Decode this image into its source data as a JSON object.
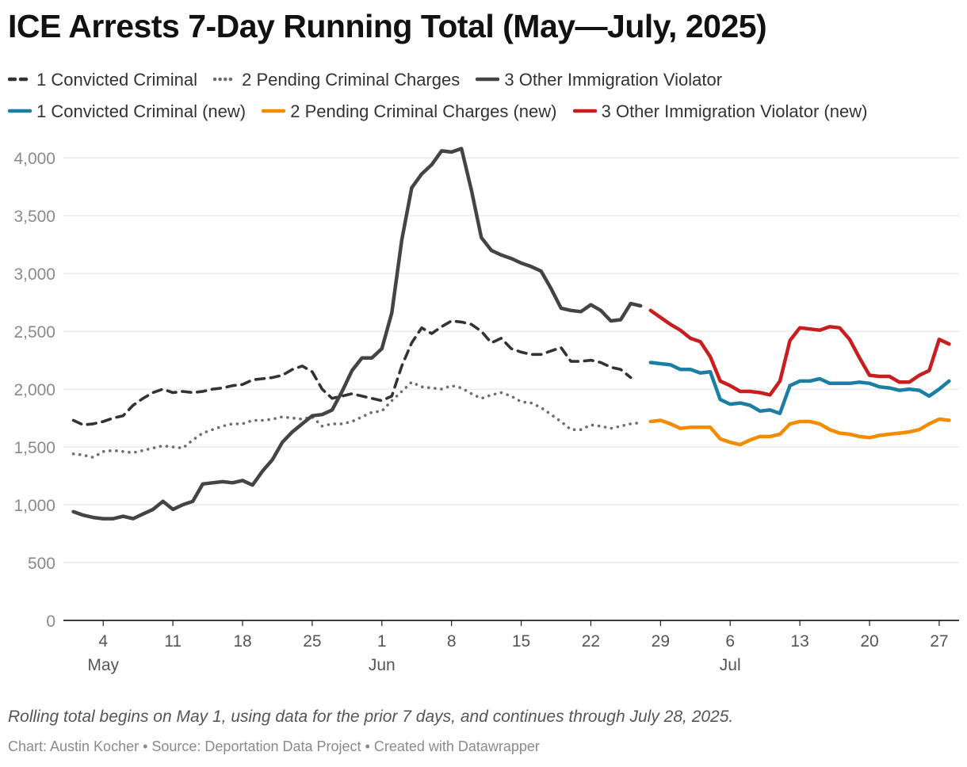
{
  "chart_data": {
    "type": "line",
    "title": "ICE Arrests 7-Day Running Total (May—July, 2025)",
    "notes": "Rolling total begins on May 1, using data for the prior 7 days, and continues through July 28, 2025.",
    "footer": "Chart: Austin Kocher • Source: Deportation Data Project • Created with Datawrapper",
    "xlabel": "",
    "ylabel": "",
    "x_range": [
      "2025-04-30",
      "2025-07-29"
    ],
    "ylim": [
      0,
      4200
    ],
    "grid": "horizontal",
    "legend_position": "top",
    "y_ticks": [
      {
        "value": 0,
        "label": "0"
      },
      {
        "value": 500,
        "label": "500"
      },
      {
        "value": 1000,
        "label": "1,000"
      },
      {
        "value": 1500,
        "label": "1,500"
      },
      {
        "value": 2000,
        "label": "2,000"
      },
      {
        "value": 2500,
        "label": "2,500"
      },
      {
        "value": 3000,
        "label": "3,000"
      },
      {
        "value": 3500,
        "label": "3,500"
      },
      {
        "value": 4000,
        "label": "4,000"
      }
    ],
    "x_ticks": [
      {
        "date": "2025-05-04",
        "label": "4",
        "month": "May"
      },
      {
        "date": "2025-05-11",
        "label": "11",
        "month": ""
      },
      {
        "date": "2025-05-18",
        "label": "18",
        "month": ""
      },
      {
        "date": "2025-05-25",
        "label": "25",
        "month": ""
      },
      {
        "date": "2025-06-01",
        "label": "1",
        "month": "Jun"
      },
      {
        "date": "2025-06-08",
        "label": "8",
        "month": ""
      },
      {
        "date": "2025-06-15",
        "label": "15",
        "month": ""
      },
      {
        "date": "2025-06-22",
        "label": "22",
        "month": ""
      },
      {
        "date": "2025-06-29",
        "label": "29",
        "month": ""
      },
      {
        "date": "2025-07-06",
        "label": "6",
        "month": "Jul"
      },
      {
        "date": "2025-07-13",
        "label": "13",
        "month": ""
      },
      {
        "date": "2025-07-20",
        "label": "20",
        "month": ""
      },
      {
        "date": "2025-07-27",
        "label": "27",
        "month": ""
      }
    ],
    "series": [
      {
        "name": "1 Convicted Criminal",
        "color": "#333333",
        "style": "dashed",
        "x": [
          "2025-05-01",
          "2025-05-02",
          "2025-05-03",
          "2025-05-04",
          "2025-05-05",
          "2025-05-06",
          "2025-05-07",
          "2025-05-08",
          "2025-05-09",
          "2025-05-10",
          "2025-05-11",
          "2025-05-12",
          "2025-05-13",
          "2025-05-14",
          "2025-05-15",
          "2025-05-16",
          "2025-05-17",
          "2025-05-18",
          "2025-05-19",
          "2025-05-20",
          "2025-05-21",
          "2025-05-22",
          "2025-05-23",
          "2025-05-24",
          "2025-05-25",
          "2025-05-26",
          "2025-05-27",
          "2025-05-28",
          "2025-05-29",
          "2025-05-30",
          "2025-05-31",
          "2025-06-01",
          "2025-06-02",
          "2025-06-03",
          "2025-06-04",
          "2025-06-05",
          "2025-06-06",
          "2025-06-07",
          "2025-06-08",
          "2025-06-09",
          "2025-06-10",
          "2025-06-11",
          "2025-06-12",
          "2025-06-13",
          "2025-06-14",
          "2025-06-15",
          "2025-06-16",
          "2025-06-17",
          "2025-06-18",
          "2025-06-19",
          "2025-06-20",
          "2025-06-21",
          "2025-06-22",
          "2025-06-23",
          "2025-06-24",
          "2025-06-25",
          "2025-06-26"
        ],
        "values": [
          1730,
          1690,
          1700,
          1720,
          1750,
          1770,
          1860,
          1920,
          1970,
          2000,
          1970,
          1980,
          1970,
          1980,
          2000,
          2010,
          2030,
          2040,
          2080,
          2090,
          2100,
          2120,
          2170,
          2200,
          2150,
          2000,
          1920,
          1940,
          1960,
          1940,
          1920,
          1900,
          1940,
          2200,
          2400,
          2530,
          2480,
          2540,
          2590,
          2580,
          2560,
          2500,
          2400,
          2440,
          2350,
          2320,
          2300,
          2300,
          2330,
          2360,
          2240,
          2240,
          2250,
          2230,
          2190,
          2170,
          2100
        ]
      },
      {
        "name": "2 Pending Criminal Charges",
        "color": "#6e6e6e",
        "style": "dotted",
        "x": [
          "2025-05-01",
          "2025-05-02",
          "2025-05-03",
          "2025-05-04",
          "2025-05-05",
          "2025-05-06",
          "2025-05-07",
          "2025-05-08",
          "2025-05-09",
          "2025-05-10",
          "2025-05-11",
          "2025-05-12",
          "2025-05-13",
          "2025-05-14",
          "2025-05-15",
          "2025-05-16",
          "2025-05-17",
          "2025-05-18",
          "2025-05-19",
          "2025-05-20",
          "2025-05-21",
          "2025-05-22",
          "2025-05-23",
          "2025-05-24",
          "2025-05-25",
          "2025-05-26",
          "2025-05-27",
          "2025-05-28",
          "2025-05-29",
          "2025-05-30",
          "2025-05-31",
          "2025-06-01",
          "2025-06-02",
          "2025-06-03",
          "2025-06-04",
          "2025-06-05",
          "2025-06-06",
          "2025-06-07",
          "2025-06-08",
          "2025-06-09",
          "2025-06-10",
          "2025-06-11",
          "2025-06-12",
          "2025-06-13",
          "2025-06-14",
          "2025-06-15",
          "2025-06-16",
          "2025-06-17",
          "2025-06-18",
          "2025-06-19",
          "2025-06-20",
          "2025-06-21",
          "2025-06-22",
          "2025-06-23",
          "2025-06-24",
          "2025-06-25",
          "2025-06-26",
          "2025-06-27"
        ],
        "values": [
          1440,
          1430,
          1410,
          1460,
          1470,
          1460,
          1450,
          1470,
          1490,
          1510,
          1500,
          1490,
          1560,
          1620,
          1650,
          1680,
          1700,
          1700,
          1730,
          1730,
          1740,
          1760,
          1750,
          1740,
          1760,
          1680,
          1700,
          1700,
          1720,
          1760,
          1800,
          1810,
          1900,
          1980,
          2060,
          2020,
          2010,
          2000,
          2030,
          2010,
          1960,
          1920,
          1950,
          1970,
          1940,
          1890,
          1880,
          1840,
          1780,
          1720,
          1650,
          1650,
          1690,
          1680,
          1660,
          1680,
          1700,
          1710
        ]
      },
      {
        "name": "3 Other Immigration Violator",
        "color": "#444444",
        "style": "solid",
        "x": [
          "2025-05-01",
          "2025-05-02",
          "2025-05-03",
          "2025-05-04",
          "2025-05-05",
          "2025-05-06",
          "2025-05-07",
          "2025-05-08",
          "2025-05-09",
          "2025-05-10",
          "2025-05-11",
          "2025-05-12",
          "2025-05-13",
          "2025-05-14",
          "2025-05-15",
          "2025-05-16",
          "2025-05-17",
          "2025-05-18",
          "2025-05-19",
          "2025-05-20",
          "2025-05-21",
          "2025-05-22",
          "2025-05-23",
          "2025-05-24",
          "2025-05-25",
          "2025-05-26",
          "2025-05-27",
          "2025-05-28",
          "2025-05-29",
          "2025-05-30",
          "2025-05-31",
          "2025-06-01",
          "2025-06-02",
          "2025-06-03",
          "2025-06-04",
          "2025-06-05",
          "2025-06-06",
          "2025-06-07",
          "2025-06-08",
          "2025-06-09",
          "2025-06-10",
          "2025-06-11",
          "2025-06-12",
          "2025-06-13",
          "2025-06-14",
          "2025-06-15",
          "2025-06-16",
          "2025-06-17",
          "2025-06-18",
          "2025-06-19",
          "2025-06-20",
          "2025-06-21",
          "2025-06-22",
          "2025-06-23",
          "2025-06-24",
          "2025-06-25",
          "2025-06-26",
          "2025-06-27"
        ],
        "values": [
          940,
          910,
          890,
          880,
          880,
          900,
          880,
          920,
          960,
          1030,
          960,
          1000,
          1030,
          1180,
          1190,
          1200,
          1190,
          1210,
          1170,
          1290,
          1390,
          1540,
          1630,
          1700,
          1770,
          1780,
          1820,
          1980,
          2160,
          2270,
          2270,
          2350,
          2660,
          3290,
          3740,
          3860,
          3940,
          4060,
          4050,
          4080,
          3720,
          3310,
          3200,
          3160,
          3130,
          3090,
          3060,
          3020,
          2870,
          2700,
          2680,
          2670,
          2730,
          2680,
          2590,
          2600,
          2740,
          2720
        ]
      },
      {
        "name": "1 Convicted Criminal (new)",
        "color": "#1b7ea3",
        "style": "solid",
        "x": [
          "2025-06-28",
          "2025-06-29",
          "2025-06-30",
          "2025-07-01",
          "2025-07-02",
          "2025-07-03",
          "2025-07-04",
          "2025-07-05",
          "2025-07-06",
          "2025-07-07",
          "2025-07-08",
          "2025-07-09",
          "2025-07-10",
          "2025-07-11",
          "2025-07-12",
          "2025-07-13",
          "2025-07-14",
          "2025-07-15",
          "2025-07-16",
          "2025-07-17",
          "2025-07-18",
          "2025-07-19",
          "2025-07-20",
          "2025-07-21",
          "2025-07-22",
          "2025-07-23",
          "2025-07-24",
          "2025-07-25",
          "2025-07-26",
          "2025-07-27",
          "2025-07-28"
        ],
        "values": [
          2230,
          2220,
          2210,
          2170,
          2170,
          2140,
          2150,
          1910,
          1870,
          1880,
          1860,
          1810,
          1820,
          1790,
          2030,
          2070,
          2070,
          2090,
          2050,
          2050,
          2050,
          2060,
          2050,
          2020,
          2010,
          1990,
          2000,
          1990,
          1940,
          2000,
          2070
        ]
      },
      {
        "name": "2 Pending Criminal Charges (new)",
        "color": "#f28c00",
        "style": "solid",
        "x": [
          "2025-06-28",
          "2025-06-29",
          "2025-06-30",
          "2025-07-01",
          "2025-07-02",
          "2025-07-03",
          "2025-07-04",
          "2025-07-05",
          "2025-07-06",
          "2025-07-07",
          "2025-07-08",
          "2025-07-09",
          "2025-07-10",
          "2025-07-11",
          "2025-07-12",
          "2025-07-13",
          "2025-07-14",
          "2025-07-15",
          "2025-07-16",
          "2025-07-17",
          "2025-07-18",
          "2025-07-19",
          "2025-07-20",
          "2025-07-21",
          "2025-07-22",
          "2025-07-23",
          "2025-07-24",
          "2025-07-25",
          "2025-07-26",
          "2025-07-27",
          "2025-07-28"
        ],
        "values": [
          1720,
          1730,
          1700,
          1660,
          1670,
          1670,
          1670,
          1570,
          1540,
          1520,
          1560,
          1590,
          1590,
          1610,
          1700,
          1720,
          1720,
          1700,
          1650,
          1620,
          1610,
          1590,
          1580,
          1600,
          1610,
          1620,
          1630,
          1650,
          1700,
          1740,
          1730
        ]
      },
      {
        "name": "3 Other Immigration Violator (new)",
        "color": "#c81e1e",
        "style": "solid",
        "x": [
          "2025-06-28",
          "2025-06-29",
          "2025-06-30",
          "2025-07-01",
          "2025-07-02",
          "2025-07-03",
          "2025-07-04",
          "2025-07-05",
          "2025-07-06",
          "2025-07-07",
          "2025-07-08",
          "2025-07-09",
          "2025-07-10",
          "2025-07-11",
          "2025-07-12",
          "2025-07-13",
          "2025-07-14",
          "2025-07-15",
          "2025-07-16",
          "2025-07-17",
          "2025-07-18",
          "2025-07-19",
          "2025-07-20",
          "2025-07-21",
          "2025-07-22",
          "2025-07-23",
          "2025-07-24",
          "2025-07-25",
          "2025-07-26",
          "2025-07-27",
          "2025-07-28"
        ],
        "values": [
          2680,
          2620,
          2560,
          2510,
          2440,
          2410,
          2280,
          2070,
          2030,
          1980,
          1980,
          1970,
          1950,
          2070,
          2420,
          2530,
          2520,
          2510,
          2540,
          2530,
          2430,
          2270,
          2120,
          2110,
          2110,
          2060,
          2060,
          2120,
          2160,
          2430,
          2390
        ]
      }
    ]
  }
}
